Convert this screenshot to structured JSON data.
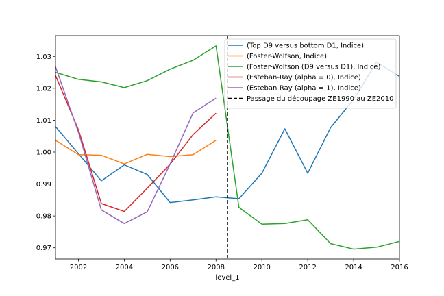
{
  "chart_data": {
    "type": "line",
    "title": "",
    "xlabel": "level_1",
    "ylabel": "",
    "xlim": [
      2001,
      2016
    ],
    "ylim": [
      0.9665,
      1.0365
    ],
    "x_ticks": [
      2002,
      2004,
      2006,
      2008,
      2010,
      2012,
      2014,
      2016
    ],
    "y_ticks": [
      0.97,
      0.98,
      0.99,
      1.0,
      1.01,
      1.02,
      1.03
    ],
    "y_tick_labels": [
      "0.97",
      "0.98",
      "0.99",
      "1.00",
      "1.01",
      "1.02",
      "1.03"
    ],
    "grid": false,
    "legend_position": "top-right",
    "series": [
      {
        "name": "(Top D9 versus bottom D1, Indice)",
        "color": "#1f77b4",
        "x": [
          2001,
          2002,
          2003,
          2004,
          2005,
          2006,
          2007,
          2008,
          2009,
          2010,
          2011,
          2012,
          2013,
          2014,
          2015,
          2016
        ],
        "values": [
          1.008,
          0.9995,
          0.991,
          0.996,
          0.993,
          0.9842,
          0.985,
          0.986,
          0.9854,
          0.9934,
          1.0073,
          0.9934,
          1.0077,
          1.0165,
          1.0282,
          1.0237
        ]
      },
      {
        "name": "(Foster-Wolfson, Indice)",
        "color": "#ff7f0e",
        "x": [
          2001,
          2002,
          2003,
          2004,
          2005,
          2006,
          2007,
          2008
        ],
        "values": [
          1.0037,
          0.9992,
          0.999,
          0.9963,
          0.9993,
          0.9986,
          0.9992,
          1.0037
        ]
      },
      {
        "name": "(Foster-Wolfson (D9 versus D1), Indice)",
        "color": "#2ca02c",
        "x": [
          2001,
          2002,
          2003,
          2004,
          2005,
          2006,
          2007,
          2008,
          2009,
          2010,
          2011,
          2012,
          2013,
          2014,
          2015,
          2016
        ],
        "values": [
          1.025,
          1.0228,
          1.022,
          1.0202,
          1.0224,
          1.026,
          1.0288,
          1.0333,
          0.9827,
          0.9774,
          0.9776,
          0.9788,
          0.9713,
          0.9696,
          0.9702,
          0.972
        ]
      },
      {
        "name": "(Esteban-Ray (alpha = 0), Indice)",
        "color": "#d62728",
        "x": [
          2001,
          2002,
          2003,
          2004,
          2005,
          2006,
          2007,
          2008
        ],
        "values": [
          1.024,
          1.007,
          0.9839,
          0.9814,
          0.9887,
          0.9962,
          1.0055,
          1.0122
        ]
      },
      {
        "name": "(Esteban-Ray (alpha = 1), Indice)",
        "color": "#9467bd",
        "x": [
          2001,
          2002,
          2003,
          2004,
          2005,
          2006,
          2007,
          2008
        ],
        "values": [
          1.0268,
          1.0062,
          0.9819,
          0.9776,
          0.9813,
          0.9963,
          1.0123,
          1.0169
        ]
      }
    ],
    "annotations": [
      {
        "type": "vline",
        "x": 2008.5,
        "style": "dashed",
        "color": "#000000",
        "label": "Passage du découpage ZE1990 au ZE2010"
      }
    ]
  }
}
